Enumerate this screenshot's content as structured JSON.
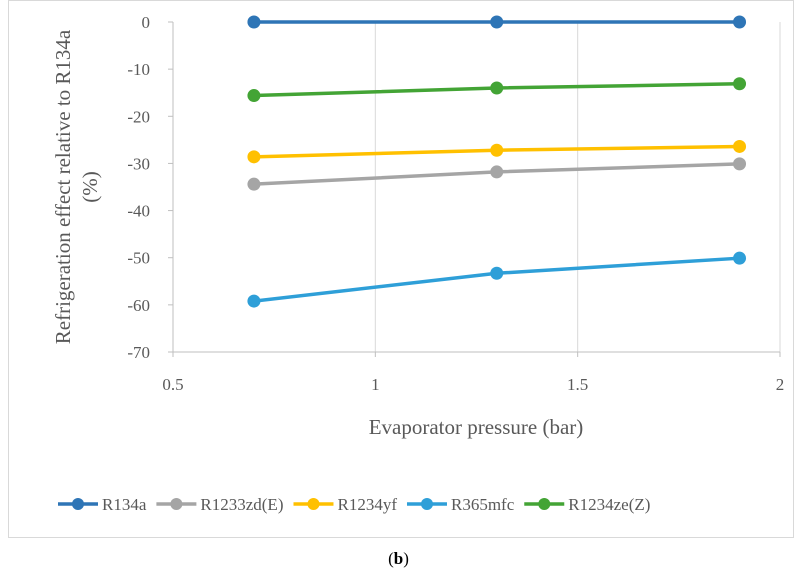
{
  "caption": {
    "open": "(",
    "letter": "b",
    "close": ")"
  },
  "chart_data": {
    "type": "line",
    "xlabel": "Evaporator pressure (bar)",
    "ylabel_line1": "Refrigeration effect relative to R134a",
    "ylabel_line2": "(%)",
    "xlim": [
      0.5,
      2
    ],
    "ylim": [
      -70,
      0
    ],
    "x_ticks": [
      0.5,
      1,
      1.5,
      2
    ],
    "x_tick_labels": [
      "0.5",
      "1",
      "1.5",
      "2"
    ],
    "y_ticks": [
      0,
      -10,
      -20,
      -30,
      -40,
      -50,
      -60,
      -70
    ],
    "y_tick_labels": [
      "0",
      "-10",
      "-20",
      "-30",
      "-40",
      "-50",
      "-60",
      "-70"
    ],
    "grid": "vertical major gridlines",
    "legend_position": "bottom",
    "series": [
      {
        "name": "R134a",
        "color": "#2e75b6",
        "x": [
          0.7,
          1.3,
          1.9
        ],
        "values": [
          0,
          0,
          0
        ]
      },
      {
        "name": "R1233zd(E)",
        "color": "#a5a5a5",
        "x": [
          0.7,
          1.3,
          1.9
        ],
        "values": [
          -34.4,
          -31.8,
          -30.1
        ]
      },
      {
        "name": "R1234yf",
        "color": "#ffc000",
        "x": [
          0.7,
          1.3,
          1.9
        ],
        "values": [
          -28.6,
          -27.2,
          -26.4
        ]
      },
      {
        "name": "R365mfc",
        "color": "#2e9fd8",
        "x": [
          0.7,
          1.3,
          1.9
        ],
        "values": [
          -59.2,
          -53.3,
          -50.1
        ]
      },
      {
        "name": "R1234ze(Z)",
        "color": "#43a435",
        "x": [
          0.7,
          1.3,
          1.9
        ],
        "values": [
          -15.6,
          -14.0,
          -13.1
        ]
      }
    ]
  }
}
